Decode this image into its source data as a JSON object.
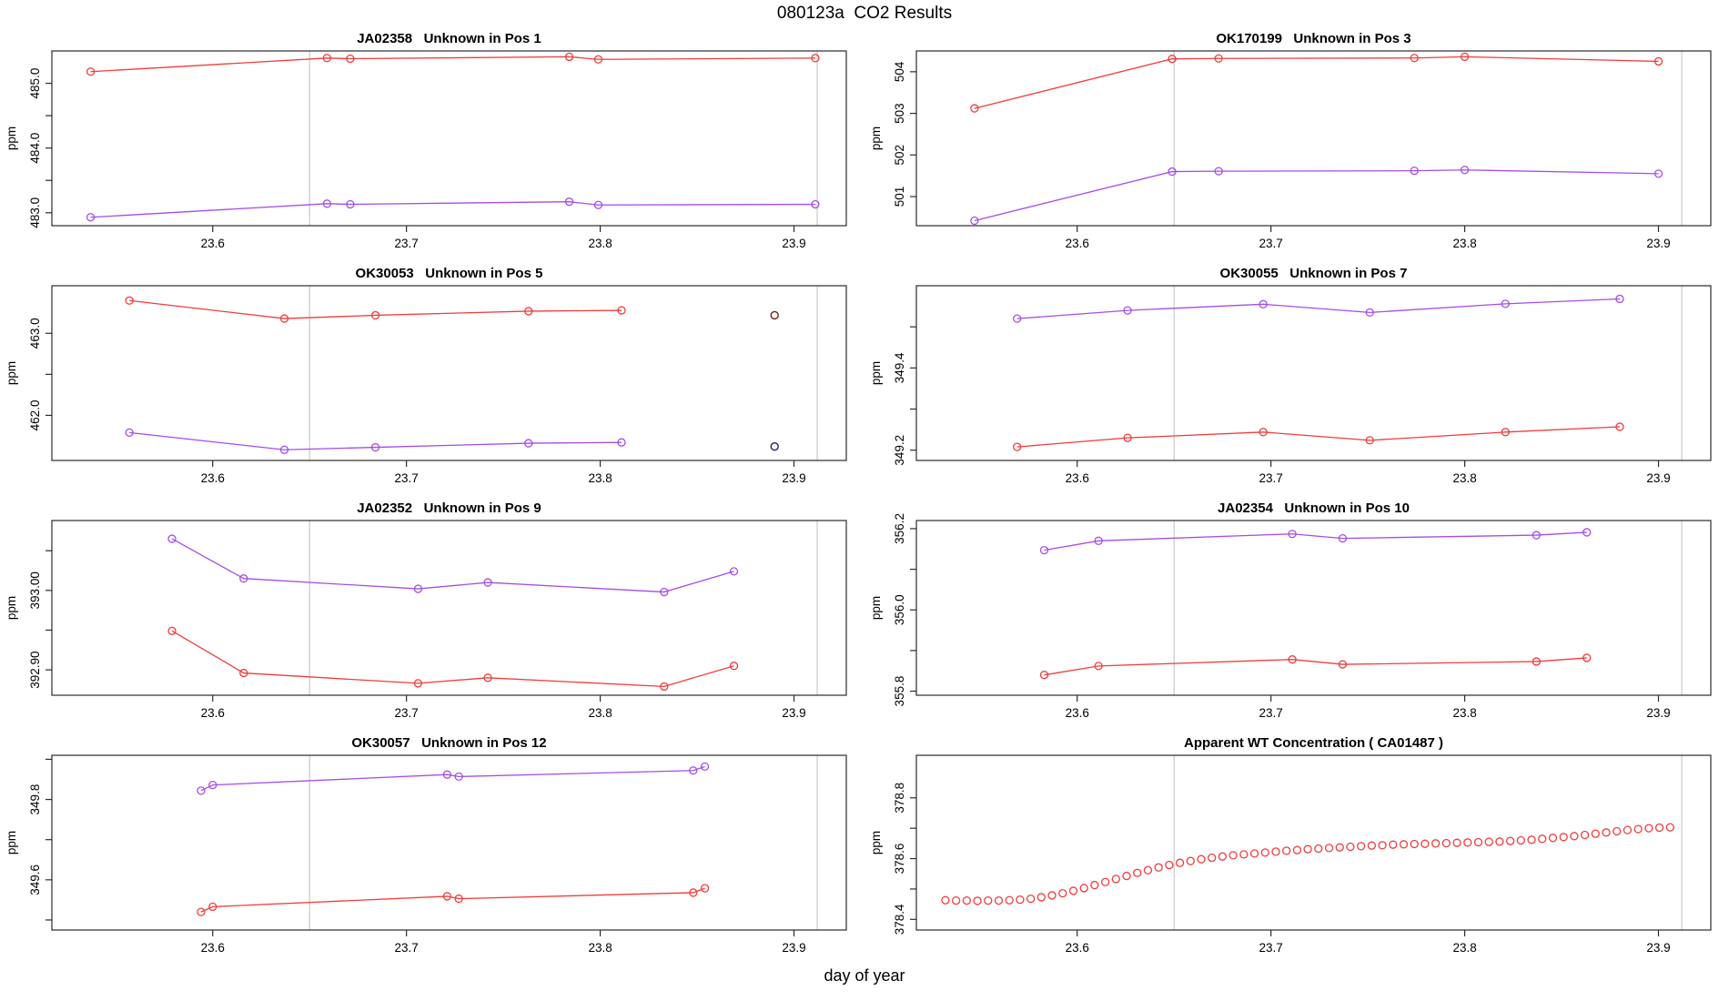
{
  "page": {
    "title": "080123a  CO2 Results",
    "xlabel": "day of year",
    "ylabel": "ppm"
  },
  "colors": {
    "red": "#f03c3c",
    "purple": "#a64ce6",
    "dark_red": "#7e1616",
    "dark_purple": "#2e1a5e",
    "refline": "#c9c9c9",
    "axis": "#2b2b2b",
    "text": "#000000"
  },
  "axis_defaults": {
    "xlim": [
      23.517,
      23.927
    ],
    "xticks": [
      23.6,
      23.7,
      23.8,
      23.9
    ],
    "xtick_labels": [
      "23.6",
      "23.7",
      "23.8",
      "23.9"
    ],
    "reflines": [
      23.65,
      23.912
    ]
  },
  "chart_data": [
    {
      "type": "line",
      "title": "JA02358   Unknown in Pos 1",
      "ylabel": "ppm",
      "ylim": [
        482.8,
        485.5
      ],
      "yticks": [
        {
          "v": 483.0,
          "label": "483.0"
        },
        {
          "v": 483.5
        },
        {
          "v": 484.0,
          "label": "484.0"
        },
        {
          "v": 484.5
        },
        {
          "v": 485.0,
          "label": "485.0"
        }
      ],
      "series": [
        {
          "name": "red-series",
          "color": "red",
          "x": [
            23.537,
            23.659,
            23.671,
            23.784,
            23.799,
            23.911
          ],
          "y": [
            485.18,
            485.39,
            485.38,
            485.41,
            485.37,
            485.39
          ]
        },
        {
          "name": "purple-series",
          "color": "purple",
          "x": [
            23.537,
            23.659,
            23.671,
            23.784,
            23.799,
            23.911
          ],
          "y": [
            482.93,
            483.14,
            483.13,
            483.17,
            483.12,
            483.13
          ]
        }
      ]
    },
    {
      "type": "line",
      "title": "OK170199   Unknown in Pos 3",
      "ylabel": "ppm",
      "ylim": [
        500.3,
        504.5
      ],
      "yticks": [
        {
          "v": 501,
          "label": "501"
        },
        {
          "v": 502,
          "label": "502"
        },
        {
          "v": 503,
          "label": "503"
        },
        {
          "v": 504,
          "label": "504"
        }
      ],
      "series": [
        {
          "name": "red-series",
          "color": "red",
          "x": [
            23.547,
            23.649,
            23.673,
            23.774,
            23.8,
            23.9
          ],
          "y": [
            503.12,
            504.31,
            504.32,
            504.33,
            504.36,
            504.25
          ]
        },
        {
          "name": "purple-series",
          "color": "purple",
          "x": [
            23.547,
            23.649,
            23.673,
            23.774,
            23.8,
            23.9
          ],
          "y": [
            500.42,
            501.6,
            501.61,
            501.62,
            501.64,
            501.55
          ]
        }
      ]
    },
    {
      "type": "line",
      "title": "OK30053   Unknown in Pos 5",
      "ylabel": "ppm",
      "ylim": [
        461.45,
        463.58
      ],
      "yticks": [
        {
          "v": 462.0,
          "label": "462.0"
        },
        {
          "v": 462.5
        },
        {
          "v": 463.0,
          "label": "463.0"
        }
      ],
      "series": [
        {
          "name": "red-series",
          "color": "red",
          "x": [
            23.557,
            23.637,
            23.684,
            23.763,
            23.811
          ],
          "y": [
            463.4,
            463.18,
            463.22,
            463.27,
            463.28
          ]
        },
        {
          "name": "purple-series",
          "color": "purple",
          "x": [
            23.557,
            23.637,
            23.684,
            23.763,
            23.811
          ],
          "y": [
            461.79,
            461.58,
            461.61,
            461.66,
            461.67
          ]
        }
      ],
      "points": [
        {
          "x": 23.89,
          "y": 463.22,
          "color": "dark_red"
        },
        {
          "x": 23.89,
          "y": 461.62,
          "color": "dark_purple"
        }
      ]
    },
    {
      "type": "line",
      "title": "OK30055   Unknown in Pos 7",
      "ylabel": "ppm",
      "ylim": [
        349.175,
        349.6
      ],
      "yticks": [
        {
          "v": 349.2,
          "label": "349.2"
        },
        {
          "v": 349.3
        },
        {
          "v": 349.4,
          "label": "349.4"
        },
        {
          "v": 349.5
        }
      ],
      "series": [
        {
          "name": "purple-series",
          "color": "purple",
          "x": [
            23.569,
            23.626,
            23.696,
            23.751,
            23.821,
            23.88
          ],
          "y": [
            349.52,
            349.54,
            349.555,
            349.535,
            349.556,
            349.568
          ]
        },
        {
          "name": "red-series",
          "color": "red",
          "x": [
            23.569,
            23.626,
            23.696,
            23.751,
            23.821,
            23.88
          ],
          "y": [
            349.208,
            349.23,
            349.244,
            349.224,
            349.244,
            349.257
          ]
        }
      ]
    },
    {
      "type": "line",
      "title": "JA02352   Unknown in Pos 9",
      "ylabel": "ppm",
      "ylim": [
        392.868,
        393.088
      ],
      "yticks": [
        {
          "v": 392.9,
          "label": "392.90"
        },
        {
          "v": 392.95
        },
        {
          "v": 393.0,
          "label": "393.00"
        },
        {
          "v": 393.05
        }
      ],
      "series": [
        {
          "name": "purple-series",
          "color": "purple",
          "x": [
            23.579,
            23.616,
            23.706,
            23.742,
            23.833,
            23.869
          ],
          "y": [
            393.065,
            393.015,
            393.002,
            393.01,
            392.998,
            393.024
          ]
        },
        {
          "name": "red-series",
          "color": "red",
          "x": [
            23.579,
            23.616,
            23.706,
            23.742,
            23.833,
            23.869
          ],
          "y": [
            392.949,
            392.896,
            392.883,
            392.89,
            392.879,
            392.905
          ]
        }
      ]
    },
    {
      "type": "line",
      "title": "JA02354   Unknown in Pos 10",
      "ylabel": "ppm",
      "ylim": [
        355.79,
        356.22
      ],
      "yticks": [
        {
          "v": 355.8,
          "label": "355.8"
        },
        {
          "v": 355.9
        },
        {
          "v": 356.0,
          "label": "356.0"
        },
        {
          "v": 356.1
        },
        {
          "v": 356.2,
          "label": "356.2"
        }
      ],
      "series": [
        {
          "name": "purple-series",
          "color": "purple",
          "x": [
            23.583,
            23.611,
            23.711,
            23.737,
            23.837,
            23.863
          ],
          "y": [
            356.147,
            356.17,
            356.187,
            356.176,
            356.184,
            356.191
          ]
        },
        {
          "name": "red-series",
          "color": "red",
          "x": [
            23.583,
            23.611,
            23.711,
            23.737,
            23.837,
            23.863
          ],
          "y": [
            355.84,
            355.862,
            355.878,
            355.866,
            355.873,
            355.882
          ]
        }
      ]
    },
    {
      "type": "line",
      "title": "OK30057   Unknown in Pos 12",
      "ylabel": "ppm",
      "ylim": [
        349.475,
        349.91
      ],
      "yticks": [
        {
          "v": 349.5
        },
        {
          "v": 349.6,
          "label": "349.6"
        },
        {
          "v": 349.7
        },
        {
          "v": 349.8,
          "label": "349.8"
        },
        {
          "v": 349.9
        }
      ],
      "series": [
        {
          "name": "purple-series",
          "color": "purple",
          "x": [
            23.594,
            23.6,
            23.721,
            23.727,
            23.848,
            23.854
          ],
          "y": [
            349.822,
            349.836,
            349.862,
            349.857,
            349.872,
            349.882
          ]
        },
        {
          "name": "red-series",
          "color": "red",
          "x": [
            23.594,
            23.6,
            23.721,
            23.727,
            23.848,
            23.854
          ],
          "y": [
            349.52,
            349.533,
            349.559,
            349.553,
            349.568,
            349.579
          ]
        }
      ]
    },
    {
      "type": "scatter",
      "title": "Apparent WT Concentration ( CA01487 )",
      "ylabel": "ppm",
      "ylim": [
        378.365,
        378.94
      ],
      "yticks": [
        {
          "v": 378.4,
          "label": "378.4"
        },
        {
          "v": 378.5
        },
        {
          "v": 378.6,
          "label": "378.6"
        },
        {
          "v": 378.7
        },
        {
          "v": 378.8,
          "label": "378.8"
        }
      ],
      "series": [
        {
          "name": "red-series",
          "color": "red",
          "line": false,
          "x": [
            23.532,
            23.5375,
            23.543,
            23.5485,
            23.554,
            23.5595,
            23.565,
            23.5705,
            23.576,
            23.5815,
            23.587,
            23.5925,
            23.598,
            23.6035,
            23.609,
            23.6145,
            23.62,
            23.6255,
            23.631,
            23.6365,
            23.642,
            23.6475,
            23.653,
            23.6585,
            23.664,
            23.6695,
            23.675,
            23.6805,
            23.686,
            23.6915,
            23.697,
            23.7025,
            23.708,
            23.7135,
            23.719,
            23.7245,
            23.73,
            23.7355,
            23.741,
            23.7465,
            23.752,
            23.7575,
            23.763,
            23.7685,
            23.774,
            23.7795,
            23.785,
            23.7905,
            23.796,
            23.8015,
            23.807,
            23.8125,
            23.818,
            23.8235,
            23.829,
            23.8345,
            23.84,
            23.8455,
            23.851,
            23.8565,
            23.862,
            23.8675,
            23.873,
            23.8785,
            23.884,
            23.8895,
            23.895,
            23.9005,
            23.906
          ],
          "y": [
            378.463,
            378.462,
            378.462,
            378.461,
            378.462,
            378.462,
            378.463,
            378.465,
            378.468,
            378.473,
            378.479,
            378.486,
            378.494,
            378.503,
            378.513,
            378.523,
            378.533,
            378.543,
            378.553,
            378.562,
            378.571,
            378.579,
            378.586,
            378.592,
            378.598,
            378.603,
            378.607,
            378.611,
            378.614,
            378.617,
            378.62,
            378.623,
            378.626,
            378.628,
            378.631,
            378.633,
            378.635,
            378.637,
            378.639,
            378.641,
            378.643,
            378.644,
            378.646,
            378.647,
            378.648,
            378.649,
            378.65,
            378.651,
            378.652,
            378.653,
            378.654,
            378.655,
            378.656,
            378.658,
            378.66,
            378.662,
            378.665,
            378.668,
            378.671,
            378.674,
            378.678,
            378.682,
            378.686,
            378.69,
            378.694,
            378.697,
            378.7,
            378.702,
            378.703
          ]
        }
      ]
    }
  ]
}
